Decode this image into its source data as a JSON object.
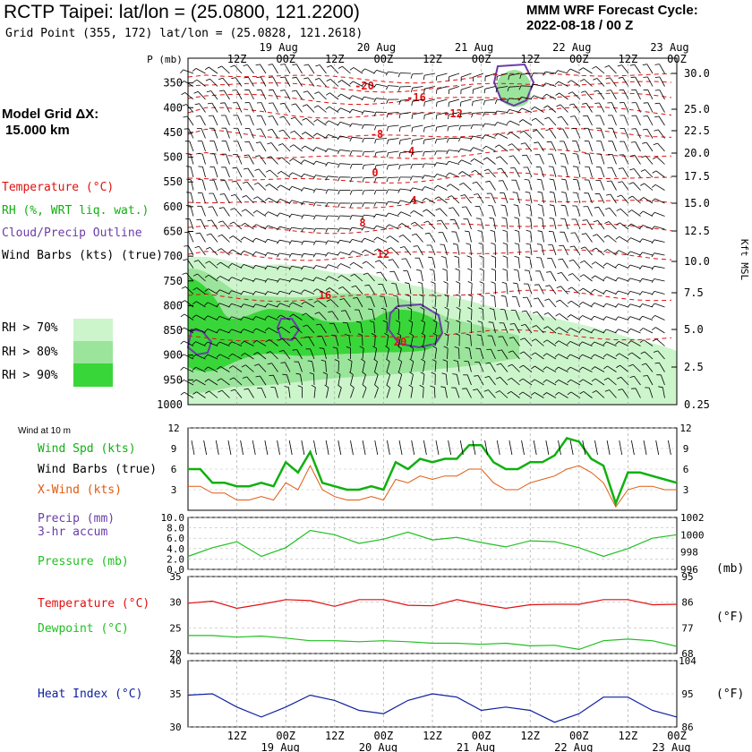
{
  "header": {
    "title": "RCTP Taipei:  lat/lon = (25.0800, 121.2200)",
    "subtitle": "Grid Point (355, 172) lat/lon = (25.0828, 121.2618)",
    "cycle_label": "MMM WRF Forecast Cycle:",
    "cycle_time": "2022-08-18 / 00  Z",
    "grid_label": "Model Grid ΔX:",
    "grid_value": "15.000 km"
  },
  "colors": {
    "temperature": "#e01010",
    "rh": "#10b010",
    "cloud": "#6a3ca8",
    "xwind": "#e05a10",
    "pressure": "#20c020",
    "dewpoint": "#20c020",
    "heat_index": "#1020a0",
    "rh70": "#ccf5cc",
    "rh80": "#9be49b",
    "rh90": "#39d639"
  },
  "legend": {
    "temperature": "Temperature (°C)",
    "rh": "RH (%, WRT liq. wat.)",
    "cloud": "Cloud/Precip Outline",
    "barbs": "Wind Barbs (kts) (true)",
    "rh70": "RH > 70%",
    "rh80": "RH > 80%",
    "rh90": "RH > 90%"
  },
  "panel_labels": {
    "wind10m": "Wind at 10 m",
    "wind_spd": "Wind Spd (kts)",
    "wind_barbs": "Wind Barbs (true)",
    "xwind": "X-Wind (kts)",
    "precip": "Precip (mm)",
    "precip2": "3-hr accum",
    "pressure": "Pressure (mb)",
    "temperature": "Temperature (°C)",
    "dewpoint": "Dewpoint (°C)",
    "heat_index": "Heat Index (°C)",
    "mb_unit": "(mb)",
    "f_unit": "(°F)",
    "f_unit2": "(°F)",
    "pressure_axis_title": "P (mb)",
    "height_axis_title": "Kft MSL"
  },
  "chart_data": [
    {
      "type": "heatmap",
      "name": "cross-section",
      "time_ticks": [
        "12Z",
        "00Z",
        "12Z",
        "00Z",
        "12Z",
        "00Z",
        "12Z",
        "00Z",
        "12Z",
        "00Z"
      ],
      "date_labels": [
        "19 Aug",
        "20 Aug",
        "21 Aug",
        "22 Aug",
        "23 Aug"
      ],
      "pressure_ticks": [
        "350",
        "400",
        "450",
        "500",
        "550",
        "600",
        "650",
        "700",
        "750",
        "800",
        "850",
        "900",
        "950",
        "1000"
      ],
      "height_ticks": [
        "30.0",
        "25.0",
        "22.5",
        "20.0",
        "17.5",
        "15.0",
        "12.5",
        "10.0",
        "7.5",
        "5.0",
        "2.5",
        "0.25"
      ],
      "temperature_labels": [
        "-20",
        "-16",
        "-12",
        "-8",
        "-4",
        "0",
        "4",
        "8",
        "12",
        "16",
        "20"
      ],
      "ylim": [
        1000,
        300
      ],
      "xlim_hours": [
        0,
        120
      ]
    },
    {
      "type": "line",
      "name": "wind-10m",
      "yticks": [
        "3",
        "6",
        "9",
        "12"
      ],
      "ylim": [
        0,
        12
      ],
      "x_hours": [
        0,
        3,
        6,
        9,
        12,
        15,
        18,
        21,
        24,
        27,
        30,
        33,
        36,
        39,
        42,
        45,
        48,
        51,
        54,
        57,
        60,
        63,
        66,
        69,
        72,
        75,
        78,
        81,
        84,
        87,
        90,
        93,
        96,
        99,
        102,
        105,
        108,
        111,
        114,
        117,
        120
      ],
      "series": [
        {
          "name": "Wind Spd (kts)",
          "values": [
            6,
            6,
            4,
            4,
            3.5,
            3.5,
            4,
            3.5,
            7,
            5.5,
            8.5,
            4,
            3.5,
            3,
            3,
            3.5,
            3,
            7,
            6,
            7.5,
            7,
            7.5,
            7.5,
            9.5,
            9.5,
            7,
            6,
            6,
            7,
            7,
            8,
            10.5,
            10,
            7.5,
            6.5,
            1,
            5.5,
            5.5,
            5,
            4.5,
            4
          ]
        },
        {
          "name": "X-Wind (kts)",
          "values": [
            3.5,
            3.5,
            2.5,
            2.5,
            1.5,
            1.5,
            2,
            1.5,
            4,
            3,
            6.5,
            3,
            2,
            1.5,
            1.5,
            2,
            1.5,
            4.5,
            4,
            5,
            4.5,
            5,
            5,
            6,
            6,
            4,
            3,
            3,
            4,
            4.5,
            5,
            6,
            6.5,
            5.5,
            4,
            0.5,
            3,
            3.5,
            3.5,
            3,
            3
          ]
        }
      ]
    },
    {
      "type": "line",
      "name": "pressure-precip",
      "yticks_left": [
        "0.0",
        "2.0",
        "4.0",
        "6.0",
        "8.0",
        "10.0"
      ],
      "yticks_right": [
        "996",
        "998",
        "1000",
        "1002"
      ],
      "ylim_left": [
        0,
        10
      ],
      "ylim_right": [
        996,
        1002
      ],
      "x_hours": [
        0,
        6,
        12,
        18,
        24,
        30,
        36,
        42,
        48,
        54,
        60,
        66,
        72,
        78,
        84,
        90,
        96,
        102,
        108,
        114,
        120
      ],
      "series": [
        {
          "name": "Pressure (mb)",
          "values": [
            997.5,
            998.5,
            999.2,
            997.5,
            998.5,
            1000.5,
            1000,
            999,
            999.5,
            1000.3,
            999.4,
            999.7,
            999.1,
            998.6,
            999.3,
            999.2,
            998.5,
            997.5,
            998.4,
            999.6,
            1000
          ]
        },
        {
          "name": "Precip (mm)",
          "values": [
            0,
            0,
            0,
            0,
            0,
            0,
            0,
            0,
            0,
            0,
            0,
            0,
            0,
            0,
            0,
            0,
            0,
            0,
            0,
            0,
            0
          ]
        }
      ]
    },
    {
      "type": "line",
      "name": "temperature-dewpoint",
      "yticks_left": [
        "20",
        "25",
        "30",
        "35"
      ],
      "yticks_right": [
        "68",
        "77",
        "86",
        "95"
      ],
      "ylim_left": [
        20,
        35
      ],
      "ylim_right": [
        68,
        95
      ],
      "x_hours": [
        0,
        6,
        12,
        18,
        24,
        30,
        36,
        42,
        48,
        54,
        60,
        66,
        72,
        78,
        84,
        90,
        96,
        102,
        108,
        114,
        120
      ],
      "series": [
        {
          "name": "Temperature (°C)",
          "values": [
            29.8,
            30.2,
            28.8,
            29.6,
            30.5,
            30.3,
            29.2,
            30.5,
            30.5,
            29.4,
            29.3,
            30.5,
            29.6,
            28.8,
            29.5,
            29.6,
            29.6,
            30.5,
            30.5,
            29.5,
            29.6
          ]
        },
        {
          "name": "Dewpoint (°C)",
          "values": [
            23.5,
            23.5,
            23.2,
            23.4,
            23,
            22.5,
            22.5,
            22.3,
            22.5,
            22.3,
            22,
            22,
            21.8,
            22,
            21.5,
            21.6,
            20.8,
            22.5,
            22.8,
            22.5,
            21.4
          ]
        }
      ]
    },
    {
      "type": "line",
      "name": "heat-index",
      "yticks_left": [
        "30",
        "35",
        "40"
      ],
      "yticks_right": [
        "86",
        "95",
        "104"
      ],
      "ylim_left": [
        30,
        40
      ],
      "ylim_right": [
        86,
        104
      ],
      "x_hours": [
        0,
        6,
        12,
        18,
        24,
        30,
        36,
        42,
        48,
        54,
        60,
        66,
        72,
        78,
        84,
        90,
        96,
        102,
        108,
        114,
        120
      ],
      "series": [
        {
          "name": "Heat Index (°C)",
          "values": [
            34.8,
            35,
            33,
            31.5,
            33,
            34.8,
            34,
            32.5,
            32,
            34,
            35,
            34.5,
            32.5,
            33,
            32.5,
            30.7,
            32,
            34.5,
            34.5,
            32.5,
            31.5
          ]
        }
      ]
    }
  ]
}
